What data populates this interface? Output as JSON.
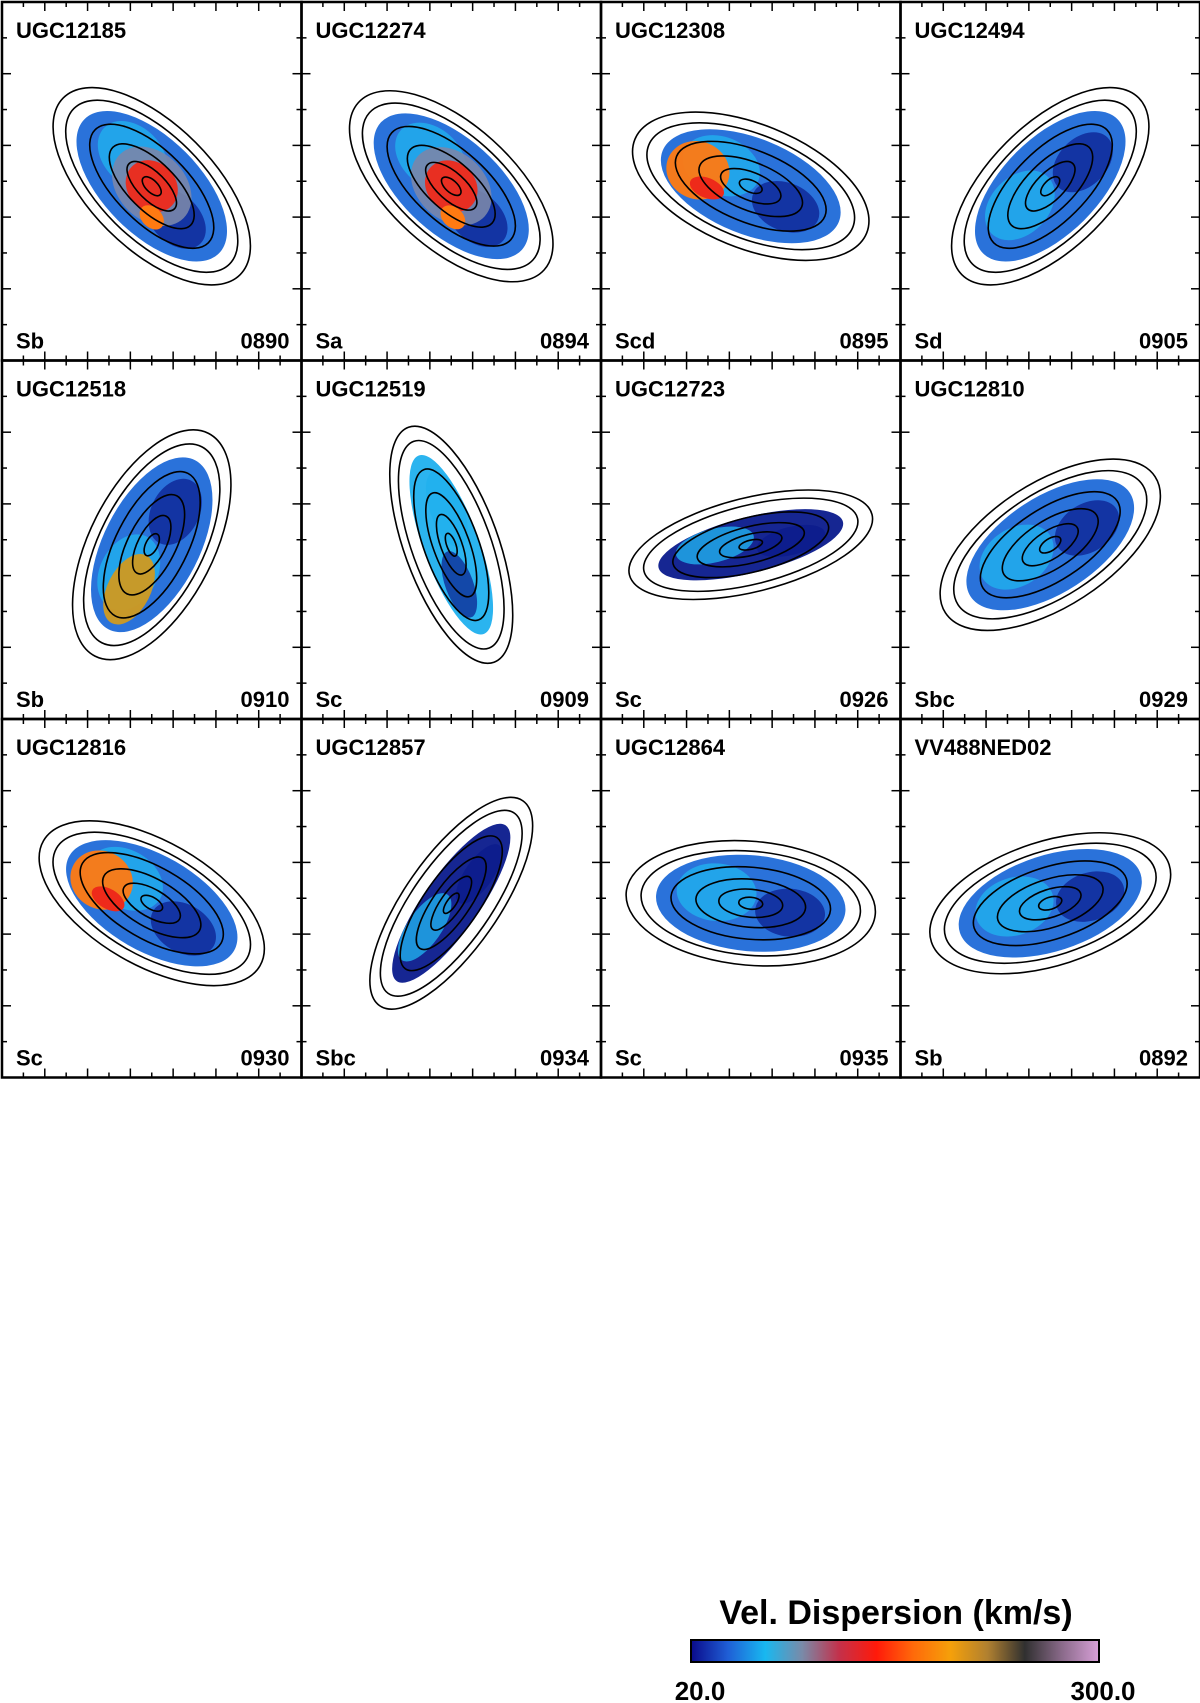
{
  "figure": {
    "panels": [
      {
        "name": "UGC12185",
        "type": "Sb",
        "id": "0890",
        "angle": -45,
        "map": "mixed-red-center"
      },
      {
        "name": "UGC12274",
        "type": "Sa",
        "id": "0894",
        "angle": -42,
        "map": "red-center"
      },
      {
        "name": "UGC12308",
        "type": "Scd",
        "id": "0895",
        "angle": -22,
        "map": "orange-left"
      },
      {
        "name": "UGC12494",
        "type": "Sd",
        "id": "0905",
        "angle": 45,
        "map": "blue"
      },
      {
        "name": "UGC12518",
        "type": "Sb",
        "id": "0910",
        "angle": 63,
        "map": "gold-top"
      },
      {
        "name": "UGC12519",
        "type": "Sc",
        "id": "0909",
        "angle": -70,
        "map": "light-blue"
      },
      {
        "name": "UGC12723",
        "type": "Sc",
        "id": "0926",
        "angle": 14,
        "map": "blue-dark"
      },
      {
        "name": "UGC12810",
        "type": "Sbc",
        "id": "0929",
        "angle": 33,
        "map": "blue"
      },
      {
        "name": "UGC12816",
        "type": "Sc",
        "id": "0930",
        "angle": -30,
        "map": "orange-left"
      },
      {
        "name": "UGC12857",
        "type": "Sbc",
        "id": "0934",
        "angle": 55,
        "map": "blue-dark"
      },
      {
        "name": "UGC12864",
        "type": "Sc",
        "id": "0935",
        "angle": -5,
        "map": "blue"
      },
      {
        "name": "VV488NED02",
        "type": "Sb",
        "id": "0892",
        "angle": 18,
        "map": "blue"
      }
    ]
  },
  "colorbar": {
    "title": "Vel. Dispersion (km/s)",
    "min_label": "20.0",
    "max_label": "300.0",
    "min": 20.0,
    "max": 300.0,
    "stops": [
      "#0a0a8a",
      "#1f5fd6",
      "#18b8f0",
      "#7a8aa8",
      "#c4304a",
      "#ff1a0a",
      "#ff6a0a",
      "#f5a00a",
      "#b08030",
      "#303030",
      "#8a6a8a",
      "#d8a0d8"
    ]
  },
  "palette": {
    "dark_blue": "#0a1a8c",
    "mid_blue": "#1f6ad8",
    "light_blue": "#20b0ee",
    "gray_blue": "#7a86aa",
    "red": "#ee2a1a",
    "orange": "#ff7a12",
    "gold": "#d09a20",
    "contour": "#000000"
  }
}
